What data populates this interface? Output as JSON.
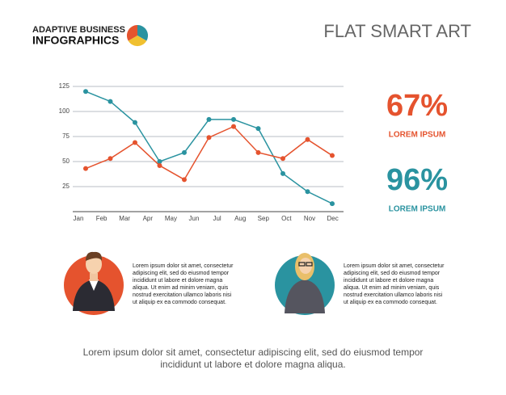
{
  "header": {
    "brand_line1": "ADAPTIVE BUSINESS",
    "brand_line2": "INFOGRAPHICS",
    "title": "FLAT SMART ART"
  },
  "chart_data": {
    "type": "line",
    "categories": [
      "Jan",
      "Feb",
      "Mar",
      "Apr",
      "May",
      "Jun",
      "Jul",
      "Aug",
      "Sep",
      "Oct",
      "Nov",
      "Dec"
    ],
    "series": [
      {
        "color": "#2a93a0",
        "values": [
          120,
          110,
          89,
          50,
          59,
          92,
          92,
          83,
          38,
          20,
          8,
          null
        ]
      },
      {
        "color": "#e5532e",
        "values": [
          43,
          53,
          69,
          46,
          32,
          74,
          85,
          59,
          53,
          72,
          56,
          null
        ]
      }
    ],
    "ylim": [
      0,
      125
    ],
    "yticks": [
      25,
      50,
      75,
      100,
      125
    ],
    "grid": true
  },
  "stats": [
    {
      "value": "67%",
      "label": "LOREM IPSUM",
      "color": "#e5532e"
    },
    {
      "value": "96%",
      "label": "LOREM IPSUM",
      "color": "#2a93a0"
    }
  ],
  "people": [
    {
      "lines": [
        "Lorem ipsum dolor sit amet, consectetur",
        "adipiscing elit, sed do eiusmod tempor",
        "incididunt ut labore et dolore magna",
        "aliqua. Ut enim ad minim veniam, quis",
        "nostrud exercitation ullamco laboris nisi",
        "ut aliquip ex ea commodo consequat."
      ]
    },
    {
      "lines": [
        "Lorem ipsum dolor sit amet, consectetur",
        "adipiscing elit, sed do eiusmod tempor",
        "incididunt ut labore et dolore magna",
        "aliqua. Ut enim ad minim veniam, quis",
        "nostrud exercitation ullamco laboris nisi",
        "ut aliquip ex ea commodo consequat."
      ]
    }
  ],
  "footer": [
    "Lorem ipsum dolor sit amet, consectetur adipiscing elit, sed do eiusmod tempor",
    "incididunt ut labore et dolore magna aliqua."
  ]
}
